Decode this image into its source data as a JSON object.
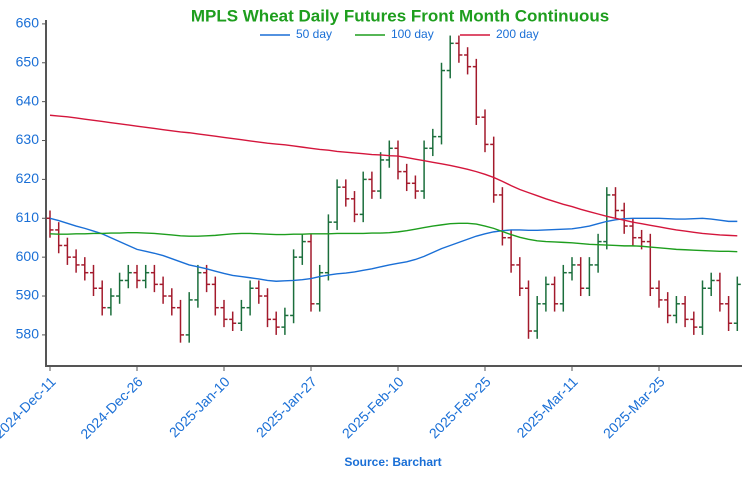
{
  "chart_data": {
    "type": "ohlc",
    "title": "MPLS Wheat Daily Futures Front Month Continuous",
    "source": "Source: Barchart",
    "categories": [
      "2024-Dec-11",
      null,
      null,
      null,
      null,
      null,
      null,
      null,
      null,
      null,
      "2024-Dec-26",
      null,
      null,
      null,
      null,
      null,
      null,
      null,
      null,
      null,
      "2025-Jan-10",
      null,
      null,
      null,
      null,
      null,
      null,
      null,
      null,
      null,
      "2025-Jan-27",
      null,
      null,
      null,
      null,
      null,
      null,
      null,
      null,
      null,
      "2025-Feb-10",
      null,
      null,
      null,
      null,
      null,
      null,
      null,
      null,
      null,
      "2025-Feb-25",
      null,
      null,
      null,
      null,
      null,
      null,
      null,
      null,
      null,
      "2025-Mar-11",
      null,
      null,
      null,
      null,
      null,
      null,
      null,
      null,
      null,
      "2025-Mar-25",
      null,
      null,
      null,
      null,
      null,
      null,
      null,
      null,
      null
    ],
    "open": [
      610,
      607,
      603,
      600,
      598,
      596,
      592,
      587,
      590,
      594,
      596,
      594,
      596,
      593,
      590,
      587,
      580,
      589,
      596,
      593,
      587,
      584,
      583,
      587,
      592,
      590,
      584,
      582,
      585,
      600,
      604,
      588,
      596,
      609,
      618,
      615,
      611,
      620,
      617,
      625,
      628,
      622,
      619,
      617,
      628,
      631,
      648,
      655,
      652,
      649,
      636,
      629,
      616,
      605,
      598,
      592,
      581,
      588,
      593,
      588,
      596,
      598,
      592,
      598,
      604,
      616,
      612,
      608,
      605,
      604,
      592,
      589,
      585,
      588,
      584,
      582,
      592,
      594,
      588,
      583
    ],
    "high": [
      612,
      609,
      605,
      602,
      600,
      598,
      594,
      592,
      596,
      598,
      598,
      598,
      598,
      595,
      592,
      589,
      591,
      598,
      598,
      595,
      589,
      586,
      589,
      594,
      594,
      592,
      586,
      587,
      602,
      606,
      606,
      598,
      611,
      620,
      620,
      617,
      622,
      622,
      627,
      630,
      630,
      624,
      621,
      630,
      633,
      650,
      657,
      657,
      654,
      651,
      638,
      631,
      618,
      607,
      600,
      594,
      590,
      595,
      595,
      598,
      600,
      600,
      600,
      606,
      618,
      618,
      614,
      610,
      607,
      606,
      594,
      591,
      590,
      590,
      586,
      594,
      596,
      596,
      590,
      595
    ],
    "low": [
      605,
      601,
      598,
      596,
      594,
      590,
      585,
      585,
      588,
      592,
      592,
      592,
      591,
      588,
      585,
      578,
      578,
      587,
      591,
      585,
      582,
      581,
      581,
      585,
      588,
      582,
      580,
      580,
      583,
      598,
      586,
      586,
      594,
      607,
      613,
      609,
      609,
      615,
      615,
      623,
      620,
      617,
      615,
      615,
      626,
      629,
      646,
      650,
      647,
      634,
      627,
      614,
      603,
      596,
      590,
      579,
      579,
      586,
      586,
      586,
      594,
      590,
      590,
      596,
      602,
      610,
      606,
      603,
      602,
      590,
      587,
      583,
      583,
      582,
      580,
      580,
      590,
      586,
      581,
      581
    ],
    "close": [
      607,
      603,
      600,
      598,
      596,
      592,
      587,
      590,
      594,
      596,
      594,
      596,
      593,
      590,
      587,
      580,
      589,
      596,
      593,
      587,
      584,
      583,
      587,
      592,
      590,
      584,
      582,
      585,
      600,
      604,
      588,
      596,
      609,
      618,
      615,
      611,
      620,
      617,
      625,
      628,
      622,
      619,
      617,
      628,
      631,
      648,
      655,
      652,
      649,
      636,
      629,
      616,
      605,
      598,
      592,
      581,
      588,
      593,
      588,
      596,
      598,
      592,
      598,
      604,
      616,
      612,
      608,
      605,
      604,
      592,
      589,
      585,
      588,
      584,
      582,
      592,
      594,
      588,
      583,
      593
    ],
    "up_color": "#1b6e3c",
    "down_color": "#a31a2c",
    "series": [
      {
        "name": "50 day",
        "color": "#1a6fd6",
        "values": [
          610,
          609.4,
          608.7,
          608,
          607.4,
          606.7,
          606,
          605,
          604,
          603,
          602,
          601.5,
          601,
          600.4,
          599.6,
          598.8,
          598,
          597.5,
          597,
          596.4,
          595.8,
          595.3,
          595,
          594.7,
          594.4,
          594,
          593.8,
          593.9,
          594,
          594.2,
          594.5,
          595,
          595.4,
          595.7,
          595.9,
          596.2,
          596.6,
          597,
          597.5,
          598,
          598.4,
          598.8,
          599.4,
          600.2,
          601.2,
          602.2,
          603,
          603.8,
          604.6,
          605.4,
          606,
          606.5,
          606.8,
          607,
          607,
          606.9,
          606.9,
          607,
          607.1,
          607.2,
          607.3,
          607.6,
          608,
          608.6,
          609.2,
          609.6,
          609.9,
          610,
          610,
          610,
          610,
          609.9,
          609.8,
          609.8,
          609.9,
          610,
          609.8,
          609.5,
          609.2,
          609.2
        ]
      },
      {
        "name": "100 day",
        "color": "#1e9e1e",
        "values": [
          606,
          605.9,
          605.9,
          606,
          606,
          606.1,
          606.1,
          606.2,
          606.2,
          606.3,
          606.3,
          606.2,
          606.1,
          605.9,
          605.7,
          605.5,
          605.4,
          605.4,
          605.5,
          605.6,
          605.8,
          606,
          606.1,
          606.1,
          606,
          605.9,
          605.8,
          605.8,
          605.9,
          605.9,
          606,
          606,
          606,
          606.1,
          606.1,
          606.1,
          606.1,
          606.2,
          606.2,
          606.3,
          606.5,
          606.8,
          607.2,
          607.6,
          608,
          608.3,
          608.6,
          608.7,
          608.7,
          608.5,
          608,
          607.4,
          606.6,
          605.8,
          605.1,
          604.6,
          604.2,
          604,
          603.9,
          603.8,
          603.7,
          603.5,
          603.3,
          603.2,
          603.1,
          603,
          602.9,
          602.9,
          602.8,
          602.6,
          602.4,
          602.2,
          602,
          601.9,
          601.8,
          601.7,
          601.6,
          601.5,
          601.5,
          601.4
        ]
      },
      {
        "name": "200 day",
        "color": "#d4163c",
        "values": [
          636.5,
          636.3,
          636.1,
          635.8,
          635.5,
          635.2,
          634.9,
          634.6,
          634.3,
          634,
          633.7,
          633.4,
          633.1,
          632.8,
          632.5,
          632.2,
          632,
          631.7,
          631.4,
          631.1,
          630.8,
          630.5,
          630.2,
          629.9,
          629.6,
          629.3,
          629.1,
          628.9,
          628.6,
          628.3,
          628,
          627.7,
          627.5,
          627.2,
          627,
          626.8,
          626.6,
          626.4,
          626.3,
          626.1,
          626,
          625.6,
          625.2,
          624.8,
          624.4,
          624,
          623.6,
          623.1,
          622.6,
          622,
          621.3,
          620.5,
          619.5,
          618.4,
          617.4,
          616.6,
          615.8,
          615,
          614.3,
          613.6,
          613,
          612.3,
          611.7,
          611.1,
          610.5,
          610,
          609.5,
          609,
          608.6,
          608.2,
          607.8,
          607.4,
          607,
          606.7,
          606.4,
          606.1,
          605.9,
          605.7,
          605.6,
          605.5
        ]
      }
    ],
    "ylim": [
      572,
      661
    ],
    "yticks": [
      580,
      590,
      600,
      610,
      620,
      630,
      640,
      650,
      660
    ]
  }
}
